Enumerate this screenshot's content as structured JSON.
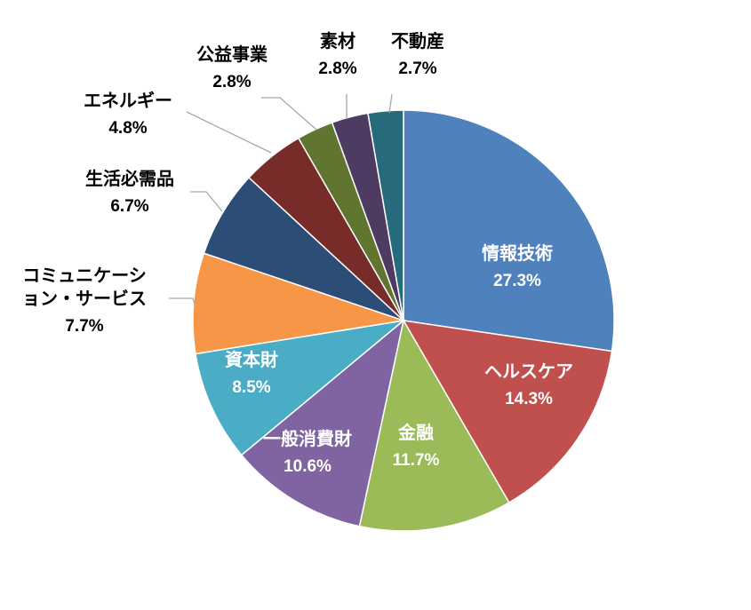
{
  "chart_data": {
    "type": "pie",
    "title": "",
    "slices": [
      {
        "label": "情報技術",
        "value_text": "27.3%",
        "value": 27.3,
        "color": "#4F81BD",
        "label_color": "#FFFFFF"
      },
      {
        "label": "ヘルスケア",
        "value_text": "14.3%",
        "value": 14.3,
        "color": "#C0504D",
        "label_color": "#FFFFFF"
      },
      {
        "label": "金融",
        "value_text": "11.7%",
        "value": 11.7,
        "color": "#9BBB59",
        "label_color": "#FFFFFF"
      },
      {
        "label": "一般消費財",
        "value_text": "10.6%",
        "value": 10.6,
        "color": "#8064A2",
        "label_color": "#FFFFFF"
      },
      {
        "label": "資本財",
        "value_text": "8.5%",
        "value": 8.5,
        "color": "#4BACC6",
        "label_color": "#FFFFFF"
      },
      {
        "label": "コミュニケーション・サービス",
        "value_text": "7.7%",
        "value": 7.7,
        "color": "#F79646",
        "label_color": "#000000"
      },
      {
        "label": "生活必需品",
        "value_text": "6.7%",
        "value": 6.7,
        "color": "#2C4D75",
        "label_color": "#000000"
      },
      {
        "label": "エネルギー",
        "value_text": "4.8%",
        "value": 4.8,
        "color": "#772C2A",
        "label_color": "#000000"
      },
      {
        "label": "公益事業",
        "value_text": "2.8%",
        "value": 2.8,
        "color": "#5F7530",
        "label_color": "#000000"
      },
      {
        "label": "素材",
        "value_text": "2.8%",
        "value": 2.8,
        "color": "#4D3B62",
        "label_color": "#000000"
      },
      {
        "label": "不動産",
        "value_text": "2.7%",
        "value": 2.7,
        "color": "#276A7C",
        "label_color": "#000000"
      }
    ],
    "start_angle_deg": 0,
    "direction": "clockwise",
    "legend": "none",
    "leader_line_color": "#A6A6A6"
  }
}
